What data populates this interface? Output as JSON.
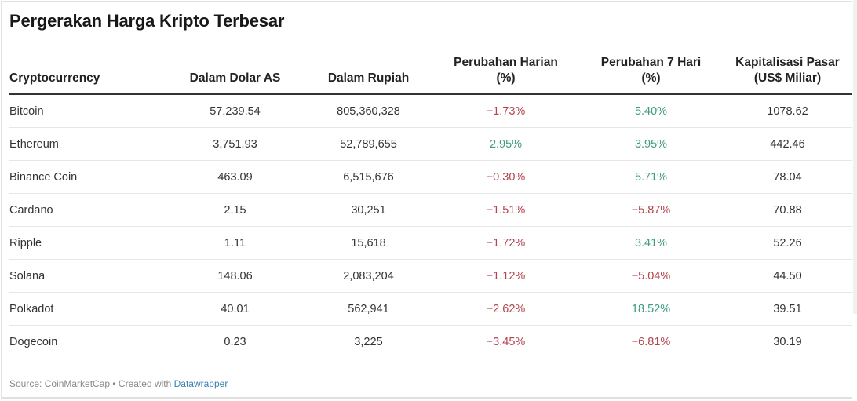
{
  "title": "Pergerakan Harga Kripto Terbesar",
  "table": {
    "headers": [
      {
        "line1": "Cryptocurrency",
        "line2": ""
      },
      {
        "line1": "Dalam Dolar AS",
        "line2": ""
      },
      {
        "line1": "Dalam Rupiah",
        "line2": ""
      },
      {
        "line1": "Perubahan Harian",
        "line2": "(%)"
      },
      {
        "line1": "Perubahan 7 Hari",
        "line2": "(%)"
      },
      {
        "line1": "Kapitalisasi Pasar",
        "line2": "(US$ Miliar)"
      }
    ],
    "rows": [
      {
        "name": "Bitcoin",
        "usd": "57,239.54",
        "idr": "805,360,328",
        "daily": "−1.73%",
        "weekly": "5.40%",
        "cap": "1078.62"
      },
      {
        "name": "Ethereum",
        "usd": "3,751.93",
        "idr": "52,789,655",
        "daily": "2.95%",
        "weekly": "3.95%",
        "cap": "442.46"
      },
      {
        "name": "Binance Coin",
        "usd": "463.09",
        "idr": "6,515,676",
        "daily": "−0.30%",
        "weekly": "5.71%",
        "cap": "78.04"
      },
      {
        "name": "Cardano",
        "usd": "2.15",
        "idr": "30,251",
        "daily": "−1.51%",
        "weekly": "−5.87%",
        "cap": "70.88"
      },
      {
        "name": "Ripple",
        "usd": "1.11",
        "idr": "15,618",
        "daily": "−1.72%",
        "weekly": "3.41%",
        "cap": "52.26"
      },
      {
        "name": "Solana",
        "usd": "148.06",
        "idr": "2,083,204",
        "daily": "−1.12%",
        "weekly": "−5.04%",
        "cap": "44.50"
      },
      {
        "name": "Polkadot",
        "usd": "40.01",
        "idr": "562,941",
        "daily": "−2.62%",
        "weekly": "18.52%",
        "cap": "39.51"
      },
      {
        "name": "Dogecoin",
        "usd": "0.23",
        "idr": "3,225",
        "daily": "−3.45%",
        "weekly": "−6.81%",
        "cap": "30.19"
      }
    ]
  },
  "footer": {
    "source": "Source: CoinMarketCap • Created with ",
    "link": "Datawrapper"
  },
  "colors": {
    "negative": "#b0454c",
    "positive": "#3f9a83"
  }
}
